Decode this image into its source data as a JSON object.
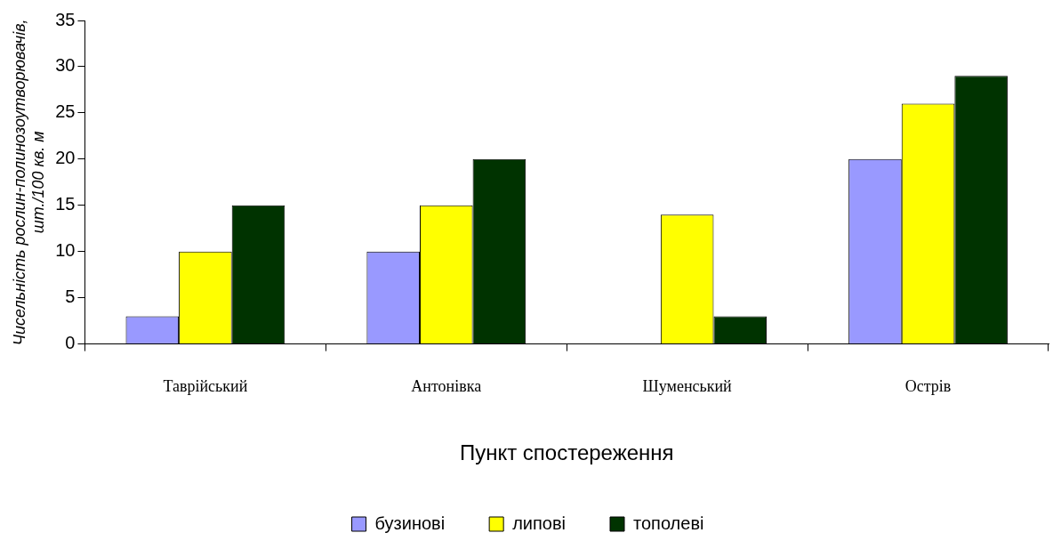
{
  "chart_data": {
    "type": "bar",
    "xlabel": "Пункт спостереження",
    "ylabel": "Чисельність рослин-полинозоутворювачів, шт./100 кв. м",
    "categories": [
      "Таврійський",
      "Антонівка",
      "Шуменський",
      "Острів"
    ],
    "series": [
      {
        "name": "бузинові",
        "color": "#9999ff",
        "values": [
          3,
          10,
          0,
          20
        ]
      },
      {
        "name": "липові",
        "color": "#ffff00",
        "values": [
          10,
          15,
          14,
          26
        ]
      },
      {
        "name": "тополеві",
        "color": "#003300",
        "values": [
          15,
          20,
          3,
          29
        ]
      }
    ],
    "ylim": [
      0,
      35
    ],
    "yticks": [
      0,
      5,
      10,
      15,
      20,
      25,
      30,
      35
    ],
    "grid": false,
    "legend": "bottom"
  }
}
